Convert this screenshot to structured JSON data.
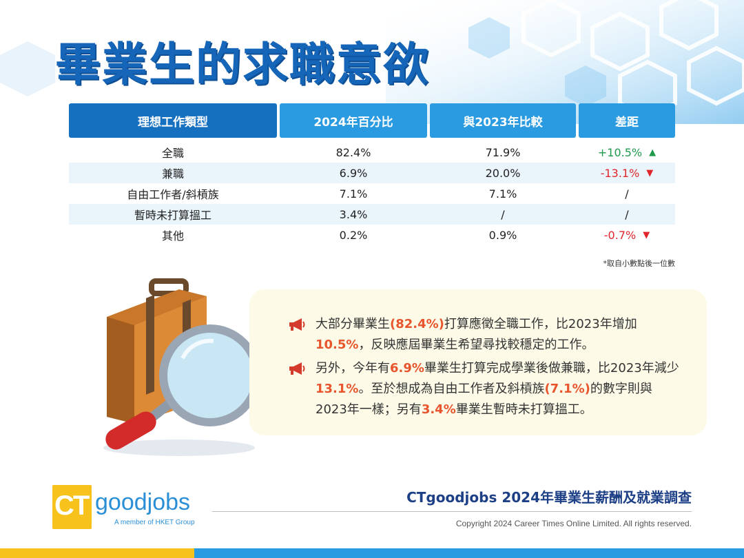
{
  "title": "畢業生的求職意欲",
  "table": {
    "headers": [
      "理想工作類型",
      "2024年百分比",
      "與2023年比較",
      "差距"
    ],
    "rows": [
      {
        "type": "全職",
        "pct2024": "82.4%",
        "pct2023": "71.9%",
        "diff": "+10.5%",
        "trend": "up"
      },
      {
        "type": "兼職",
        "pct2024": "6.9%",
        "pct2023": "20.0%",
        "diff": "-13.1%",
        "trend": "down"
      },
      {
        "type": "自由工作者/斜槓族",
        "pct2024": "7.1%",
        "pct2023": "7.1%",
        "diff": "/",
        "trend": "none"
      },
      {
        "type": "暫時未打算搵工",
        "pct2024": "3.4%",
        "pct2023": "/",
        "diff": "/",
        "trend": "none"
      },
      {
        "type": "其他",
        "pct2024": "0.2%",
        "pct2023": "0.9%",
        "diff": "-0.7%",
        "trend": "down"
      }
    ]
  },
  "footnote": "*取自小數點後一位數",
  "summary": {
    "p1": {
      "a": "大部分畢業生",
      "b": "(82.4%)",
      "c": "打算應徵全職工作，比2023年增加",
      "d": "10.5%",
      "e": "，反映應屆畢業生希望尋找較穩定的工作。"
    },
    "p2": {
      "a": "另外，今年有",
      "b": "6.9%",
      "c": "畢業生打算完成學業後做兼職，比2023年減少",
      "d": "13.1%",
      "e": "。至於想成為自由工作者及斜槓族",
      "f": "(7.1%)",
      "g": "的數字則與2023年一樣；另有",
      "h": "3.4%",
      "i": "畢業生暫時未打算搵工。"
    }
  },
  "logo": {
    "ct": "CT",
    "goodjobs": "goodjobs",
    "sub": "A member of HKET Group"
  },
  "survey_title": "CTgoodjobs 2024年畢業生薪酬及就業調查",
  "copyright": "Copyright 2024 Career Times Online Limited. All rights reserved.",
  "colors": {
    "primary": "#1565b8",
    "accent": "#2a9be0",
    "highlight": "#e8542c",
    "up": "#1f9a4b",
    "down": "#e0262b",
    "brand_yellow": "#f7c21c"
  },
  "icons": {
    "up": "arrow-up-icon",
    "down": "arrow-down-icon",
    "megaphone": "megaphone-icon"
  }
}
